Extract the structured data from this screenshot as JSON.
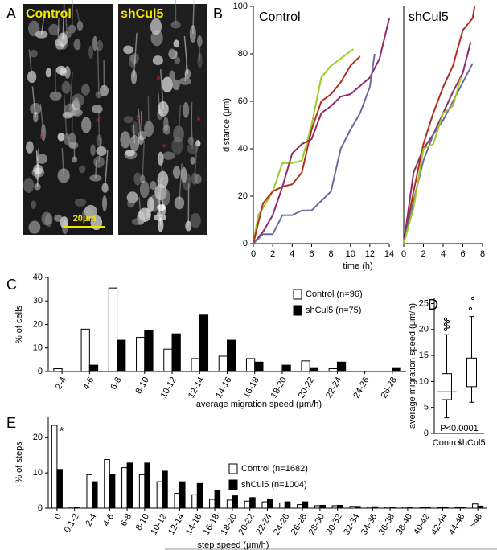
{
  "panel_a": {
    "label": "A",
    "images": [
      "Control",
      "shCul5"
    ],
    "scale_bar": "20μm"
  },
  "chart_data": [
    {
      "type": "line",
      "panel": "B",
      "title": "Control",
      "xlabel": "time (h)",
      "ylabel": "distance (μm)",
      "xlim": [
        0,
        14
      ],
      "xticks": [
        0,
        2,
        4,
        6,
        8,
        10,
        12,
        14
      ],
      "ylim": [
        0,
        100
      ],
      "yticks": [
        0,
        20,
        40,
        60,
        80,
        100
      ],
      "series": [
        {
          "color": "#9ccc2a",
          "x": [
            0,
            0.5,
            1,
            2,
            3,
            4,
            5,
            6,
            7,
            8,
            9,
            10.3
          ],
          "values": [
            0,
            12,
            15,
            22,
            34,
            34,
            35,
            50,
            70,
            75,
            78,
            82
          ]
        },
        {
          "color": "#b0321e",
          "x": [
            0,
            1,
            2,
            3,
            4,
            5,
            6,
            7,
            8,
            9,
            10,
            11
          ],
          "values": [
            0,
            17,
            22,
            24,
            25,
            30,
            48,
            60,
            63,
            68,
            75,
            79
          ]
        },
        {
          "color": "#8e2c6a",
          "x": [
            0,
            1,
            2,
            3,
            4,
            5,
            6,
            7,
            8,
            9,
            10,
            12,
            13,
            14
          ],
          "values": [
            0,
            5,
            12,
            24,
            38,
            42,
            44,
            55,
            58,
            62,
            63,
            70,
            78,
            95
          ]
        },
        {
          "color": "#6b6b9e",
          "x": [
            0,
            1,
            2,
            3,
            4,
            5,
            6,
            7,
            8,
            9,
            10,
            11,
            12,
            12.5
          ],
          "values": [
            0,
            4,
            4,
            12,
            12,
            14,
            14,
            18,
            22,
            40,
            48,
            55,
            66,
            80
          ]
        }
      ]
    },
    {
      "type": "line",
      "title": "shCul5",
      "xlim": [
        0,
        8
      ],
      "xticks": [
        0,
        2,
        4,
        6,
        8
      ],
      "ylim": [
        0,
        100
      ],
      "series": [
        {
          "color": "#b0321e",
          "x": [
            0,
            1,
            2,
            3,
            4,
            5,
            6,
            7,
            7.2
          ],
          "values": [
            0,
            22,
            42,
            55,
            66,
            75,
            90,
            95,
            100
          ]
        },
        {
          "color": "#8e2c6a",
          "x": [
            0,
            1,
            2,
            3,
            4,
            5,
            6,
            6.8
          ],
          "values": [
            0,
            30,
            40,
            46,
            55,
            64,
            72,
            85
          ]
        },
        {
          "color": "#6b6b9e",
          "x": [
            0,
            1,
            2,
            3,
            4,
            5,
            6,
            7
          ],
          "values": [
            0,
            18,
            35,
            46,
            52,
            60,
            68,
            76
          ]
        },
        {
          "color": "#9ccc2a",
          "x": [
            0,
            1,
            2,
            3,
            4,
            5,
            5.8
          ],
          "values": [
            0,
            15,
            40,
            42,
            55,
            58,
            70
          ]
        }
      ]
    },
    {
      "type": "bar",
      "panel": "C",
      "xlabel": "average migration speed (μm/h)",
      "ylabel": "% of cells",
      "categories": [
        "2-4",
        "4-6",
        "6-8",
        "8-10",
        "10-12",
        "12-14",
        "14-16",
        "16-18",
        "18-20",
        "20-22",
        "22-24",
        "24-26",
        "26-28"
      ],
      "ylim": [
        0,
        40
      ],
      "yticks": [
        0,
        10,
        20,
        30,
        40
      ],
      "series": [
        {
          "name": "Control (n=96)",
          "color": "#ffffff",
          "values": [
            1.2,
            18,
            35.5,
            14.5,
            9.5,
            5.5,
            6.5,
            5.5,
            0,
            4.5,
            1.2,
            0,
            0
          ]
        },
        {
          "name": "shCul5 (n=75)",
          "color": "#000000",
          "values": [
            0,
            2.7,
            13.3,
            17.3,
            16,
            24,
            13.3,
            4,
            2.7,
            1.3,
            4,
            0,
            1.3
          ]
        }
      ]
    },
    {
      "type": "box",
      "panel": "D",
      "ylabel": "average migration speed (μm/h)",
      "annotation": "P<0.0001",
      "categories": [
        "Control",
        "shCul5"
      ],
      "ylim": [
        0,
        26
      ],
      "yticks": [
        0,
        5,
        10,
        15,
        20,
        25
      ],
      "boxes": [
        {
          "whislo": 3,
          "q1": 6.5,
          "med": 8,
          "q3": 11.5,
          "whishi": 19,
          "fliers": [
            20,
            20.5,
            21,
            21.5,
            22
          ]
        },
        {
          "whislo": 6,
          "q1": 9,
          "med": 12,
          "q3": 14.5,
          "whishi": 22.5,
          "fliers": [
            24,
            26
          ]
        }
      ]
    },
    {
      "type": "bar",
      "panel": "E",
      "xlabel": "step speed  (μm/h)",
      "ylabel": "% of steps",
      "annotation": "*",
      "categories": [
        "0",
        "0.1-2",
        "2-4",
        "4-6",
        "6-8",
        "8-10",
        "10-12",
        "12-14",
        "14-16",
        "16-18",
        "18-20",
        "20-22",
        "22-24",
        "24-26",
        "26-28",
        "28-30",
        "30-32",
        "32-34",
        "34-36",
        "36-38",
        "38-40",
        "40-42",
        "42-44",
        "44-46",
        ">46"
      ],
      "ylim": [
        0,
        26
      ],
      "yticks": [
        0,
        10,
        20
      ],
      "series": [
        {
          "name": "Control (n=1682)",
          "color": "#ffffff",
          "values": [
            23.5,
            0.3,
            9.5,
            13.8,
            11.5,
            9.5,
            7.5,
            4.2,
            3.8,
            2.5,
            2.3,
            2.0,
            1.8,
            1.5,
            1.0,
            0.7,
            0.7,
            0.5,
            0.3,
            0.3,
            0.3,
            0.2,
            0.2,
            0.2,
            1.2
          ]
        },
        {
          "name": "shCul5 (n=1004)",
          "color": "#000000",
          "values": [
            11,
            0.2,
            7.5,
            9.5,
            12.8,
            12.8,
            10.5,
            7.5,
            7,
            5,
            3.5,
            3,
            2.5,
            1.8,
            1.8,
            0.8,
            0.8,
            0.5,
            0.4,
            0.3,
            0.3,
            0.3,
            0.3,
            0.3,
            0.6
          ]
        }
      ]
    }
  ]
}
